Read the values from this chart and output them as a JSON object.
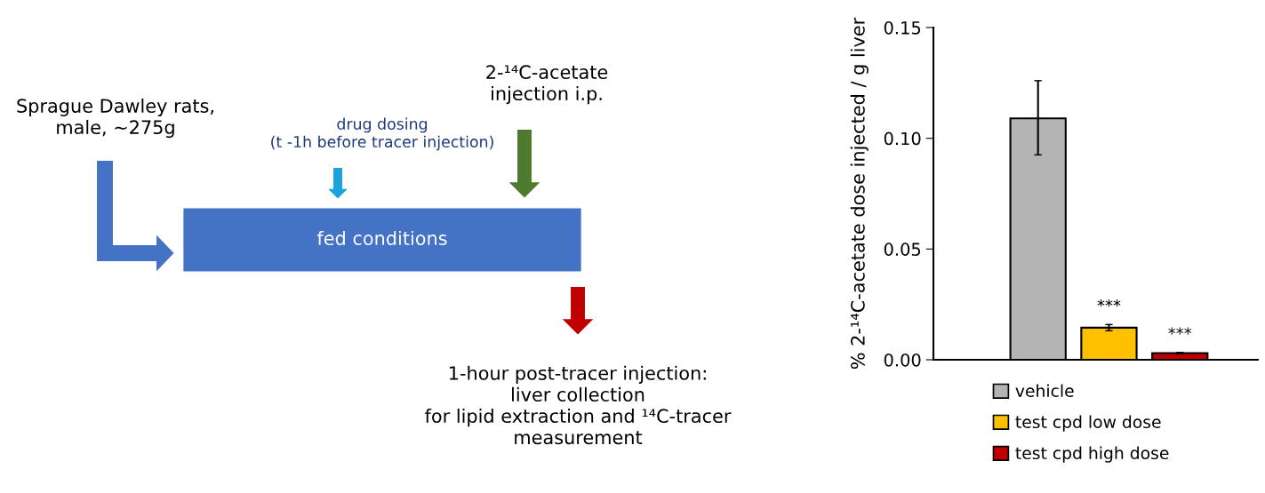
{
  "chart_data": [
    {
      "type": "other",
      "annotations": [
        "Sprague Dawley rats,\nmale, ~275g",
        "drug dosing\n(t -1h before tracer injection)",
        "2-¹⁴C-acetate\ninjection i.p.",
        "fed conditions",
        "1-hour post-tracer injection:\nliver collection\nfor lipid extraction and ¹⁴C-tracer\nmeasurement"
      ]
    },
    {
      "type": "bar",
      "ylabel": "% 2-¹⁴C-acetate dose injected / g liver",
      "categories": [
        null,
        null,
        null
      ],
      "series": [
        {
          "name": "vehicle",
          "color": "#b4b4b4",
          "values": [
            0.109,
            null,
            null
          ],
          "errors": [
            [
              0.0925,
              0.126
            ],
            null,
            null
          ]
        },
        {
          "name": "test cpd low dose",
          "color": "#ffc000",
          "values": [
            null,
            0.0145,
            null
          ],
          "errors": [
            null,
            0.0014,
            null
          ],
          "value_labels": [
            null,
            "***",
            null
          ]
        },
        {
          "name": "test cpd high dose",
          "color": "#c00000",
          "values": [
            null,
            null,
            0.003
          ],
          "errors": [
            null,
            null,
            0.0003
          ],
          "value_labels": [
            null,
            null,
            "***"
          ]
        }
      ],
      "ylim": [
        0,
        0.15
      ],
      "yticks": [
        {
          "value": 0,
          "label": "0.00"
        },
        {
          "value": 0.05,
          "label": "0.05"
        },
        {
          "value": 0.1,
          "label": "0.10"
        },
        {
          "value": 0.15,
          "label": "0.15"
        }
      ],
      "tick_labels": "y",
      "legend": "bottom",
      "grid": false
    }
  ]
}
